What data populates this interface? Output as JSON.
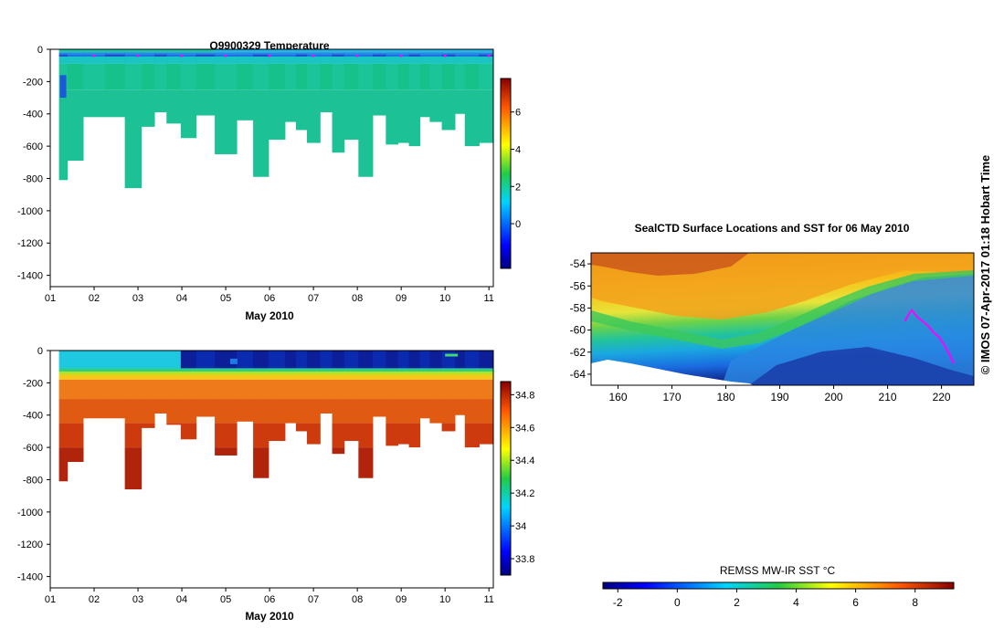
{
  "chart_data": [
    {
      "type": "heatmap",
      "title": "Q9900329  Temperature",
      "xlabel": "May 2010",
      "ylabel": "",
      "xlim": [
        1,
        11.1
      ],
      "ylim": [
        -1470,
        0
      ],
      "x_ticks": [
        "01",
        "02",
        "03",
        "04",
        "05",
        "06",
        "07",
        "08",
        "09",
        "10",
        "11"
      ],
      "y_ticks": [
        "0",
        "-200",
        "-400",
        "-600",
        "-800",
        "-1000",
        "-1200",
        "-1400"
      ],
      "colorbar": {
        "min": -2.4,
        "max": 7.8,
        "ticks": [
          "6",
          "4",
          "2",
          "0"
        ]
      },
      "dive_times": [
        1.28,
        1.5,
        2.0,
        2.5,
        2.9,
        3.25,
        3.5,
        3.8,
        4.15,
        4.5,
        5.0,
        5.5,
        5.75,
        6.2,
        6.5,
        6.7,
        7.0,
        7.3,
        7.55,
        7.85,
        8.2,
        8.5,
        8.8,
        9.05,
        9.3,
        9.55,
        9.75,
        10.1,
        10.35,
        10.55,
        11.0
      ],
      "dive_depths": [
        -810,
        -690,
        -420,
        -420,
        -860,
        -480,
        -390,
        -460,
        -550,
        -410,
        -650,
        -440,
        -790,
        -560,
        -450,
        -500,
        -580,
        -390,
        -640,
        -560,
        -790,
        -410,
        -590,
        -580,
        -600,
        -420,
        -450,
        -500,
        -400,
        -600,
        -580
      ],
      "surface_markers_x": [
        2,
        3,
        4,
        5,
        6,
        7,
        8,
        9,
        10,
        11
      ]
    },
    {
      "type": "heatmap",
      "title": "",
      "xlabel": "May 2010",
      "ylabel": "",
      "xlim": [
        1,
        11.1
      ],
      "ylim": [
        -1470,
        0
      ],
      "x_ticks": [
        "01",
        "02",
        "03",
        "04",
        "05",
        "06",
        "07",
        "08",
        "09",
        "10",
        "11"
      ],
      "y_ticks": [
        "0",
        "-200",
        "-400",
        "-600",
        "-800",
        "-1000",
        "-1200",
        "-1400"
      ],
      "colorbar": {
        "min": 33.7,
        "max": 34.88,
        "ticks": [
          "34.8",
          "34.6",
          "34.4",
          "34.2",
          "34",
          "33.8"
        ]
      }
    },
    {
      "type": "heatmap",
      "title": "SealCTD Surface Locations and SST for 06 May 2010",
      "xlabel": "",
      "ylabel": "",
      "xlim": [
        155,
        226
      ],
      "ylim": [
        -65,
        -53
      ],
      "x_ticks": [
        "160",
        "170",
        "180",
        "190",
        "200",
        "210",
        "220"
      ],
      "y_ticks": [
        "-54",
        "-56",
        "-58",
        "-60",
        "-62",
        "-64"
      ],
      "colorbar": {
        "label": "REMSS MW-IR SST °C",
        "min": -2.5,
        "max": 9.3,
        "ticks": [
          "-2",
          "0",
          "2",
          "4",
          "6",
          "8"
        ]
      },
      "track_lon": [
        213.2,
        214.0,
        214.5,
        215.5,
        216.5,
        217.5,
        218.5,
        219.5,
        220.3,
        221.0,
        221.6,
        222.0,
        222.3
      ],
      "track_lat": [
        -59.2,
        -58.5,
        -58.2,
        -58.8,
        -59.2,
        -59.6,
        -60.2,
        -60.6,
        -61.2,
        -61.8,
        -62.3,
        -62.8,
        -63.0
      ]
    }
  ],
  "credit": "©  IMOS 07-Apr-2017 01:18 Hobart Time"
}
